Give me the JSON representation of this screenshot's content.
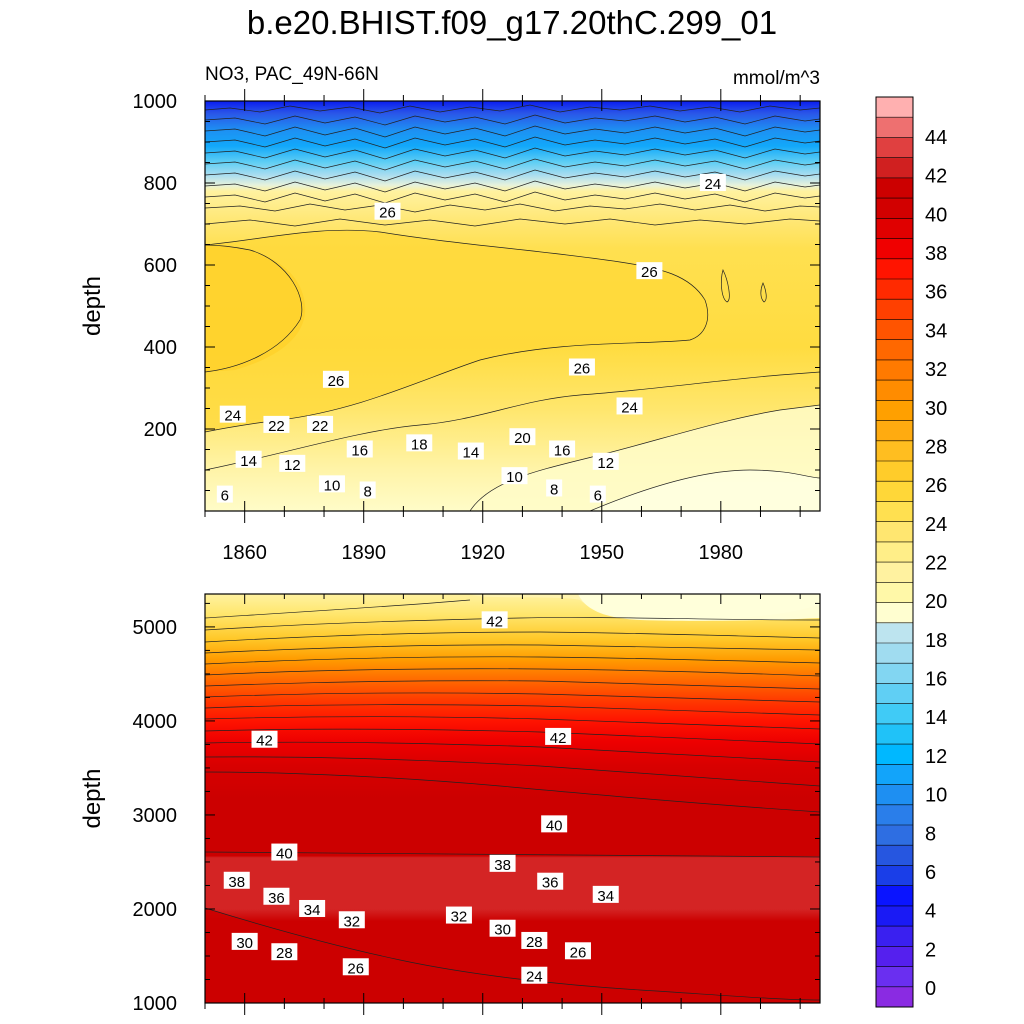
{
  "title": "b.e20.BHIST.f09_g17.20thC.299_01",
  "subtitle_left": "NO3, PAC_49N-66N",
  "subtitle_right": "mmol/m^3",
  "chart_data": [
    {
      "type": "heatmap",
      "panel": "top",
      "variable": "NO3, PAC_49N-66N",
      "units": "mmol/m^3",
      "xlabel": "",
      "ylabel": "depth",
      "xlim": [
        1850,
        2005
      ],
      "ylim": [
        1000,
        0
      ],
      "xticks": [
        1860,
        1890,
        1920,
        1950,
        1980
      ],
      "yticks": [
        200,
        400,
        600,
        800,
        1000
      ],
      "contour_labels": [
        {
          "value": 6,
          "x": 1855,
          "y": 40
        },
        {
          "value": 8,
          "x": 1891,
          "y": 50
        },
        {
          "value": 10,
          "x": 1882,
          "y": 65
        },
        {
          "value": 8,
          "x": 1938,
          "y": 55
        },
        {
          "value": 6,
          "x": 1949,
          "y": 40
        },
        {
          "value": 10,
          "x": 1928,
          "y": 85
        },
        {
          "value": 14,
          "x": 1861,
          "y": 125
        },
        {
          "value": 12,
          "x": 1872,
          "y": 115
        },
        {
          "value": 16,
          "x": 1889,
          "y": 150
        },
        {
          "value": 18,
          "x": 1904,
          "y": 165
        },
        {
          "value": 14,
          "x": 1917,
          "y": 145
        },
        {
          "value": 16,
          "x": 1940,
          "y": 150
        },
        {
          "value": 12,
          "x": 1951,
          "y": 120
        },
        {
          "value": 20,
          "x": 1930,
          "y": 180
        },
        {
          "value": 22,
          "x": 1868,
          "y": 210
        },
        {
          "value": 22,
          "x": 1879,
          "y": 210
        },
        {
          "value": 24,
          "x": 1857,
          "y": 235
        },
        {
          "value": 24,
          "x": 1957,
          "y": 255
        },
        {
          "value": 26,
          "x": 1883,
          "y": 320
        },
        {
          "value": 26,
          "x": 1945,
          "y": 350
        },
        {
          "value": 26,
          "x": 1962,
          "y": 585
        },
        {
          "value": 26,
          "x": 1896,
          "y": 730
        },
        {
          "value": 24,
          "x": 1978,
          "y": 800
        }
      ]
    },
    {
      "type": "heatmap",
      "panel": "bottom",
      "variable": "NO3, PAC_49N-66N",
      "units": "mmol/m^3",
      "xlabel": "",
      "ylabel": "depth",
      "xlim": [
        1850,
        2005
      ],
      "ylim": [
        5350,
        1000
      ],
      "xticks": [
        1860,
        1890,
        1920,
        1950,
        1980
      ],
      "yticks": [
        1000,
        2000,
        3000,
        4000,
        5000
      ],
      "contour_labels": [
        {
          "value": 26,
          "x": 1888,
          "y": 1380
        },
        {
          "value": 24,
          "x": 1933,
          "y": 1290
        },
        {
          "value": 26,
          "x": 1944,
          "y": 1550
        },
        {
          "value": 28,
          "x": 1870,
          "y": 1540
        },
        {
          "value": 30,
          "x": 1860,
          "y": 1650
        },
        {
          "value": 28,
          "x": 1933,
          "y": 1660
        },
        {
          "value": 30,
          "x": 1925,
          "y": 1790
        },
        {
          "value": 32,
          "x": 1887,
          "y": 1880
        },
        {
          "value": 32,
          "x": 1914,
          "y": 1930
        },
        {
          "value": 34,
          "x": 1877,
          "y": 2000
        },
        {
          "value": 34,
          "x": 1951,
          "y": 2150
        },
        {
          "value": 36,
          "x": 1868,
          "y": 2130
        },
        {
          "value": 36,
          "x": 1937,
          "y": 2290
        },
        {
          "value": 38,
          "x": 1858,
          "y": 2300
        },
        {
          "value": 38,
          "x": 1925,
          "y": 2480
        },
        {
          "value": 40,
          "x": 1870,
          "y": 2600
        },
        {
          "value": 40,
          "x": 1938,
          "y": 2900
        },
        {
          "value": 42,
          "x": 1865,
          "y": 3800
        },
        {
          "value": 42,
          "x": 1939,
          "y": 3830
        },
        {
          "value": 42,
          "x": 1923,
          "y": 5070
        }
      ]
    },
    {
      "type": "colorbar",
      "levels": [
        0,
        2,
        4,
        6,
        8,
        10,
        12,
        14,
        16,
        18,
        20,
        22,
        24,
        26,
        28,
        30,
        32,
        34,
        36,
        38,
        40,
        42,
        44
      ],
      "labels": [
        0,
        2,
        4,
        6,
        8,
        10,
        12,
        14,
        16,
        18,
        20,
        22,
        24,
        26,
        28,
        30,
        32,
        34,
        36,
        38,
        40,
        42,
        44
      ],
      "colors": [
        "#8a2be2",
        "#6a2ff0",
        "#5520ee",
        "#3a20f0",
        "#1a1af5",
        "#0a14ff",
        "#1a3ee8",
        "#2656e0",
        "#2e6ee2",
        "#2a7eea",
        "#1e8ff2",
        "#12a4fa",
        "#00b8ff",
        "#20c2f8",
        "#40cbf6",
        "#60cff4",
        "#82d6f2",
        "#a0dcf0",
        "#bde4ef",
        "#fffed0",
        "#fff8a8",
        "#fff2a0",
        "#ffee88",
        "#ffe670",
        "#ffe050",
        "#ffd738",
        "#ffcc2a",
        "#ffbe20",
        "#ffab10",
        "#ffa000",
        "#ff8c00",
        "#ff7a00",
        "#ff6800",
        "#ff5400",
        "#ff4000",
        "#ff2a00",
        "#ff1400",
        "#f00000",
        "#e00000",
        "#d20000",
        "#cc0000",
        "#d02020",
        "#e04040",
        "#ee7070",
        "#ffb0b0"
      ]
    }
  ]
}
